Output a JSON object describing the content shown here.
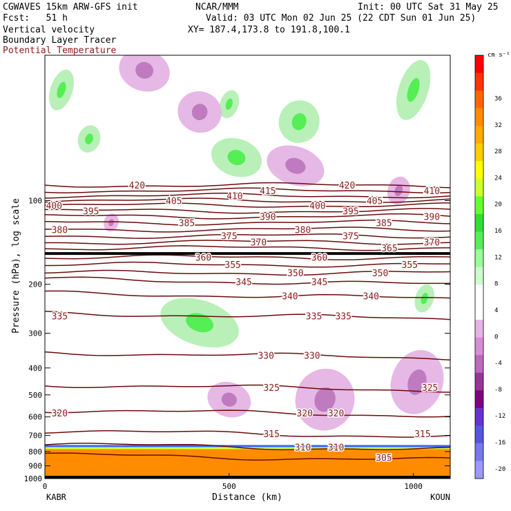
{
  "header": {
    "model": "CGWAVES 15km ARW-GFS init",
    "org": "NCAR/MMM",
    "init": "Init: 00 UTC Sat 31 May 25",
    "fcst": "Fcst:   51 h",
    "valid": "Valid: 03 UTC Mon 02 Jun 25 (22 CDT Sun 01 Jun 25)",
    "field1": "Vertical velocity",
    "xy": "XY= 187.4,173.8 to 191.8,100.1",
    "field2": "Boundary Layer Tracer",
    "field3": "Potential Temperature"
  },
  "chart_data": {
    "type": "cross-section",
    "xlabel": "Distance (km)",
    "ylabel": "Pressure (hPa), log scale",
    "xlim": [
      0,
      1100
    ],
    "ylim": [
      1000,
      30
    ],
    "y_scale": "log",
    "x_ticks": [
      0,
      500,
      1000
    ],
    "y_ticks": [
      100,
      200,
      300,
      400,
      500,
      600,
      700,
      800,
      900,
      1000
    ],
    "x_end_labels": [
      "KABR",
      "KOUN"
    ],
    "colorbar": {
      "unit": "cm s⁻¹",
      "tick_labels": [
        "36",
        "32",
        "28",
        "24",
        "20",
        "16",
        "12",
        "8",
        "4",
        "0",
        "-4",
        "-8",
        "-12",
        "-16",
        "-20"
      ],
      "colors": [
        "#ff0000",
        "#ff3300",
        "#ff6600",
        "#ff8c00",
        "#ffaa00",
        "#ffcc00",
        "#ffff00",
        "#ccff33",
        "#66ff33",
        "#33dd33",
        "#55ee55",
        "#99ff99",
        "#ccffcc",
        "#ffffff",
        "#ffffff",
        "#e6b3e6",
        "#d98cd9",
        "#bf66bf",
        "#993399",
        "#800080",
        "#6633cc",
        "#5555dd",
        "#7777ee",
        "#9999ff"
      ]
    },
    "theta_contours": [
      {
        "value": 420,
        "p": 88
      },
      {
        "value": 415,
        "p": 92
      },
      {
        "value": 410,
        "p": 96
      },
      {
        "value": 405,
        "p": 100
      },
      {
        "value": 400,
        "p": 104
      },
      {
        "value": 395,
        "p": 109
      },
      {
        "value": 390,
        "p": 114
      },
      {
        "value": 385,
        "p": 120
      },
      {
        "value": 380,
        "p": 127
      },
      {
        "value": 375,
        "p": 134
      },
      {
        "value": 370,
        "p": 141
      },
      {
        "value": 365,
        "p": 148
      },
      {
        "value": 360,
        "p": 160
      },
      {
        "value": 355,
        "p": 170
      },
      {
        "value": 350,
        "p": 182
      },
      {
        "value": 345,
        "p": 196
      },
      {
        "value": 340,
        "p": 220
      },
      {
        "value": 335,
        "p": 260
      },
      {
        "value": 330,
        "p": 360
      },
      {
        "value": 325,
        "p": 470
      },
      {
        "value": 320,
        "p": 580
      },
      {
        "value": 315,
        "p": 690
      },
      {
        "value": 310,
        "p": 770
      },
      {
        "value": 305,
        "p": 840
      }
    ],
    "theta_labels": [
      {
        "text": "420",
        "x": 250,
        "p": 88
      },
      {
        "text": "405",
        "x": 350,
        "p": 100
      },
      {
        "text": "410",
        "x": 515,
        "p": 96
      },
      {
        "text": "415",
        "x": 605,
        "p": 92
      },
      {
        "text": "420",
        "x": 820,
        "p": 88
      },
      {
        "text": "405",
        "x": 895,
        "p": 100
      },
      {
        "text": "410",
        "x": 1050,
        "p": 92
      },
      {
        "text": "400",
        "x": 25,
        "p": 104
      },
      {
        "text": "395",
        "x": 125,
        "p": 109
      },
      {
        "text": "400",
        "x": 740,
        "p": 104
      },
      {
        "text": "395",
        "x": 830,
        "p": 109
      },
      {
        "text": "390",
        "x": 1050,
        "p": 114
      },
      {
        "text": "390",
        "x": 605,
        "p": 114
      },
      {
        "text": "385",
        "x": 385,
        "p": 120
      },
      {
        "text": "385",
        "x": 920,
        "p": 120
      },
      {
        "text": "380",
        "x": 40,
        "p": 127
      },
      {
        "text": "380",
        "x": 700,
        "p": 127
      },
      {
        "text": "375",
        "x": 500,
        "p": 134
      },
      {
        "text": "375",
        "x": 830,
        "p": 134
      },
      {
        "text": "370",
        "x": 1050,
        "p": 141
      },
      {
        "text": "370",
        "x": 580,
        "p": 141
      },
      {
        "text": "365",
        "x": 935,
        "p": 148
      },
      {
        "text": "360",
        "x": 430,
        "p": 160
      },
      {
        "text": "360",
        "x": 745,
        "p": 160
      },
      {
        "text": "355",
        "x": 510,
        "p": 170
      },
      {
        "text": "355",
        "x": 990,
        "p": 170
      },
      {
        "text": "350",
        "x": 680,
        "p": 182
      },
      {
        "text": "350",
        "x": 910,
        "p": 182
      },
      {
        "text": "345",
        "x": 540,
        "p": 196
      },
      {
        "text": "345",
        "x": 745,
        "p": 196
      },
      {
        "text": "340",
        "x": 665,
        "p": 220
      },
      {
        "text": "340",
        "x": 885,
        "p": 220
      },
      {
        "text": "335",
        "x": 40,
        "p": 260
      },
      {
        "text": "335",
        "x": 730,
        "p": 260
      },
      {
        "text": "335",
        "x": 810,
        "p": 260
      },
      {
        "text": "330",
        "x": 600,
        "p": 360
      },
      {
        "text": "330",
        "x": 725,
        "p": 360
      },
      {
        "text": "325",
        "x": 615,
        "p": 470
      },
      {
        "text": "325",
        "x": 1045,
        "p": 470
      },
      {
        "text": "320",
        "x": 40,
        "p": 580
      },
      {
        "text": "320",
        "x": 705,
        "p": 580
      },
      {
        "text": "320",
        "x": 790,
        "p": 580
      },
      {
        "text": "315",
        "x": 615,
        "p": 690
      },
      {
        "text": "315",
        "x": 1025,
        "p": 690
      },
      {
        "text": "310",
        "x": 700,
        "p": 770
      },
      {
        "text": "310",
        "x": 790,
        "p": 770
      },
      {
        "text": "305",
        "x": 920,
        "p": 840
      }
    ],
    "tropopause_p": 155,
    "velocity_regions": [
      {
        "sign": "up",
        "x": 45,
        "p": 40,
        "rx": 30,
        "rp": 6
      },
      {
        "sign": "up",
        "x": 690,
        "p": 52,
        "rx": 55,
        "rp": 8
      },
      {
        "sign": "up",
        "x": 500,
        "p": 45,
        "rx": 25,
        "rp": 4
      },
      {
        "sign": "up",
        "x": 1000,
        "p": 40,
        "rx": 40,
        "rp": 10
      },
      {
        "sign": "up",
        "x": 520,
        "p": 70,
        "rx": 70,
        "rp": 9
      },
      {
        "sign": "up",
        "x": 120,
        "p": 60,
        "rx": 30,
        "rp": 5
      },
      {
        "sign": "up",
        "x": 420,
        "p": 275,
        "rx": 110,
        "rp": 45
      },
      {
        "sign": "up",
        "x": 1030,
        "p": 225,
        "rx": 25,
        "rp": 20
      },
      {
        "sign": "down",
        "x": 270,
        "p": 34,
        "rx": 70,
        "rp": 5
      },
      {
        "sign": "down",
        "x": 420,
        "p": 48,
        "rx": 60,
        "rp": 7
      },
      {
        "sign": "down",
        "x": 680,
        "p": 75,
        "rx": 80,
        "rp": 10
      },
      {
        "sign": "down",
        "x": 960,
        "p": 92,
        "rx": 30,
        "rp": 8
      },
      {
        "sign": "down",
        "x": 1010,
        "p": 450,
        "rx": 70,
        "rp": 120
      },
      {
        "sign": "down",
        "x": 760,
        "p": 520,
        "rx": 80,
        "rp": 130
      },
      {
        "sign": "down",
        "x": 500,
        "p": 520,
        "rx": 60,
        "rp": 60
      },
      {
        "sign": "down",
        "x": 180,
        "p": 120,
        "rx": 20,
        "rp": 5
      }
    ],
    "boundary_layer": {
      "top_p": 775,
      "bottom_p": 1000
    }
  }
}
